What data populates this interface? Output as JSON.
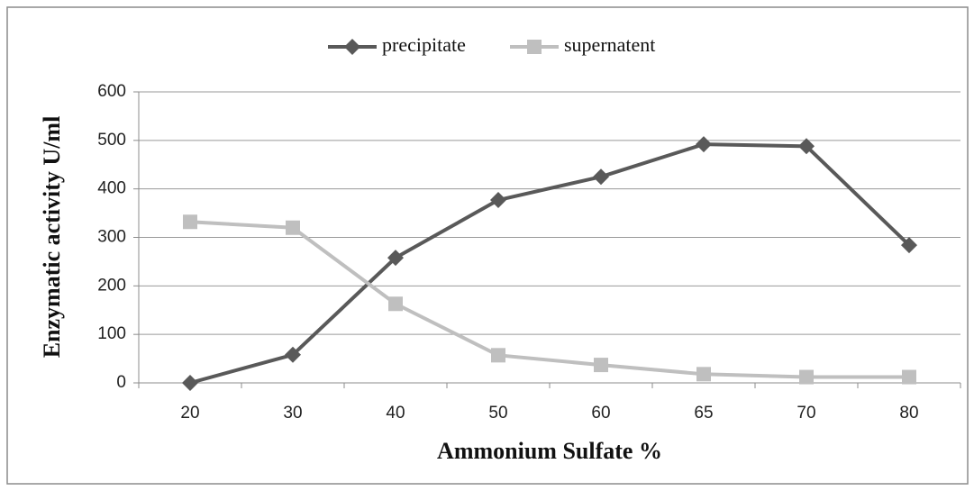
{
  "chart_data": {
    "type": "line",
    "x_label": "Ammonium Sulfate %",
    "y_label": "Enzymatic activity U/ml",
    "categories": [
      "20",
      "30",
      "40",
      "50",
      "60",
      "65",
      "70",
      "80"
    ],
    "series": [
      {
        "name": "precipitate",
        "color": "#595959",
        "marker": "diamond",
        "values": [
          0,
          58,
          258,
          377,
          425,
          492,
          488,
          284
        ]
      },
      {
        "name": "supernatent",
        "color": "#bfbfbf",
        "marker": "square",
        "values": [
          332,
          320,
          163,
          57,
          37,
          18,
          12,
          12
        ]
      }
    ],
    "ylim": [
      0,
      600
    ],
    "yticks": [
      0,
      100,
      200,
      300,
      400,
      500,
      600
    ],
    "grid": true,
    "legend": "top"
  }
}
